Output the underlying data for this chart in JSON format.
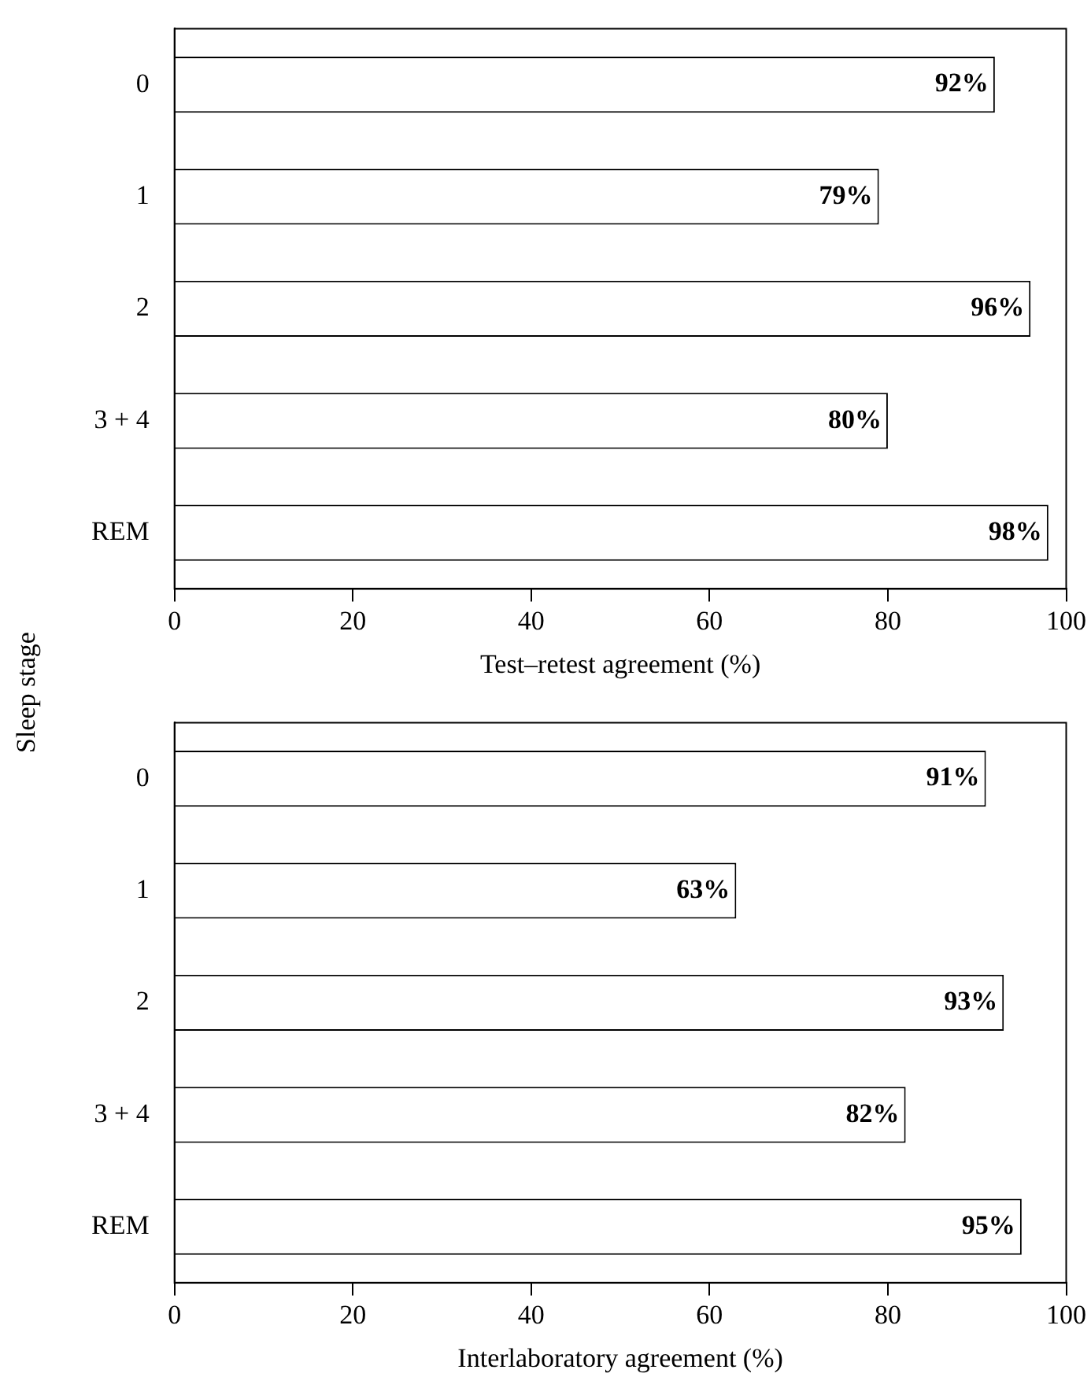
{
  "chart_data": [
    {
      "type": "bar",
      "orientation": "horizontal",
      "ylabel": "Sleep stage",
      "xlabel": "Test–retest agreement (%)",
      "categories": [
        "0",
        "1",
        "2",
        "3 + 4",
        "REM"
      ],
      "values": [
        92,
        79,
        96,
        80,
        98
      ],
      "color": "#ffffff",
      "xlim": [
        0,
        100
      ],
      "xticks": [
        0,
        20,
        40,
        60,
        80,
        100
      ],
      "data_labels": true,
      "value_labels": [
        "92%",
        "79%",
        "96%",
        "80%",
        "98%"
      ],
      "grid": false,
      "legend": false
    },
    {
      "type": "bar",
      "orientation": "horizontal",
      "xlabel": "Interlaboratory agreement (%)",
      "categories": [
        "0",
        "1",
        "2",
        "3 + 4",
        "REM"
      ],
      "values": [
        91,
        63,
        93,
        82,
        95
      ],
      "color": "#ffffff",
      "xlim": [
        0,
        100
      ],
      "xticks": [
        0,
        20,
        40,
        60,
        80,
        100
      ],
      "data_labels": true,
      "value_labels": [
        "91%",
        "63%",
        "93%",
        "82%",
        "95%"
      ],
      "grid": false,
      "legend": false
    }
  ]
}
